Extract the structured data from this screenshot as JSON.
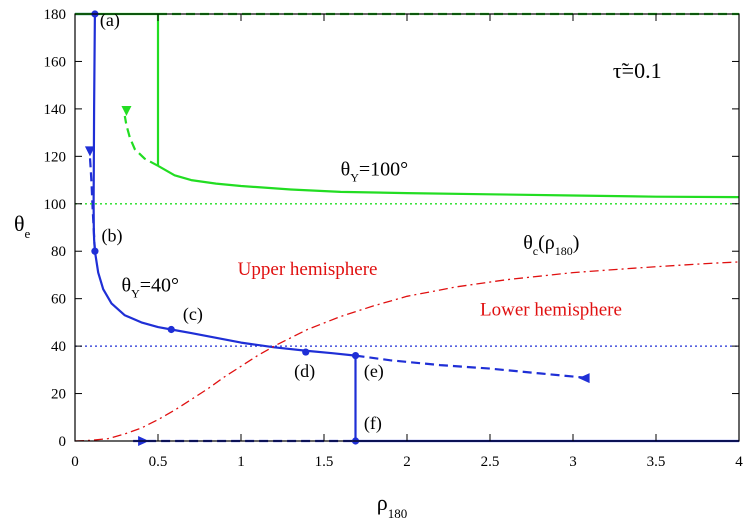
{
  "chart_data": {
    "type": "line",
    "xlabel": "ρ",
    "xlabel_sub": "180",
    "ylabel": "θ",
    "ylabel_sub": "e",
    "xlim": [
      0,
      4
    ],
    "ylim": [
      0,
      180
    ],
    "xticks": [
      0,
      0.5,
      1,
      1.5,
      2,
      2.5,
      3,
      3.5,
      4
    ],
    "xtick_labels": [
      "0",
      "0.5",
      "1",
      "1.5",
      "2",
      "2.5",
      "3",
      "3.5",
      "4"
    ],
    "yticks": [
      0,
      20,
      40,
      60,
      80,
      100,
      120,
      140,
      160,
      180
    ],
    "ytick_labels": [
      "0",
      "20",
      "40",
      "60",
      "80",
      "100",
      "120",
      "140",
      "160",
      "180"
    ],
    "colors": {
      "blue": "#1f2fd6",
      "green": "#22dd22",
      "red": "#e01010"
    },
    "series": [
      {
        "color": "blue",
        "style": "solid",
        "width": 2.2,
        "x": [
          0,
          0.12
        ],
        "y": [
          180,
          180
        ]
      },
      {
        "color": "blue",
        "style": "solid",
        "width": 2.2,
        "x": [
          0.12,
          0.115,
          0.113,
          0.112,
          0.113,
          0.115,
          0.12
        ],
        "y": [
          180,
          140,
          115,
          100,
          90,
          85,
          80
        ]
      },
      {
        "color": "blue",
        "style": "solid",
        "width": 2.2,
        "x": [
          0.12,
          0.14,
          0.17,
          0.22,
          0.3,
          0.4,
          0.5,
          0.58,
          0.7,
          0.85,
          1.0,
          1.2,
          1.4,
          1.55,
          1.69
        ],
        "y": [
          80,
          71,
          64,
          58,
          53,
          50,
          48,
          47,
          45.5,
          43.5,
          41.5,
          39.5,
          38,
          37,
          36
        ]
      },
      {
        "color": "blue",
        "style": "dashed",
        "width": 2.2,
        "x": [
          0.12,
          0.112,
          0.105,
          0.1,
          0.095,
          0.09
        ],
        "y": [
          80,
          90,
          100,
          108,
          114,
          120
        ]
      },
      {
        "color": "blue",
        "style": "dashed",
        "width": 2.2,
        "x": [
          1.69,
          1.9,
          2.2,
          2.5,
          2.8,
          3.1
        ],
        "y": [
          36,
          34,
          32,
          30.5,
          28.5,
          26.5
        ]
      },
      {
        "color": "blue",
        "style": "solid",
        "width": 2.2,
        "x": [
          1.69,
          1.69
        ],
        "y": [
          36,
          0
        ]
      },
      {
        "color": "blue",
        "style": "solid",
        "width": 2.2,
        "x": [
          1.69,
          4
        ],
        "y": [
          0,
          0
        ]
      },
      {
        "color": "blue",
        "style": "dashed",
        "width": 2.2,
        "x": [
          0.35,
          1.69
        ],
        "y": [
          0,
          0
        ]
      },
      {
        "color": "blue",
        "style": "dotted",
        "width": 1.3,
        "x": [
          0,
          4
        ],
        "y": [
          40,
          40
        ]
      },
      {
        "color": "green",
        "style": "solid",
        "width": 2.2,
        "x": [
          0,
          0.5
        ],
        "y": [
          180,
          180
        ]
      },
      {
        "color": "green",
        "style": "dashed",
        "width": 2.2,
        "x": [
          0.5,
          4
        ],
        "y": [
          180,
          180
        ]
      },
      {
        "color": "green",
        "style": "solid",
        "width": 2.2,
        "x": [
          0.5,
          0.5
        ],
        "y": [
          180,
          116
        ]
      },
      {
        "color": "green",
        "style": "solid",
        "width": 2.2,
        "x": [
          0.5,
          0.6,
          0.7,
          0.85,
          1.0,
          1.3,
          1.6,
          2.0,
          2.5,
          3.0,
          3.5,
          4.0
        ],
        "y": [
          116,
          112,
          110,
          108.5,
          107.5,
          106,
          105,
          104.5,
          104,
          103.5,
          103,
          102.8
        ]
      },
      {
        "color": "green",
        "style": "dashed",
        "width": 2.2,
        "x": [
          0.5,
          0.42,
          0.36,
          0.33,
          0.31,
          0.3
        ],
        "y": [
          116,
          119,
          123,
          128,
          133,
          137
        ]
      },
      {
        "color": "green",
        "style": "dotted",
        "width": 1.3,
        "x": [
          0,
          4
        ],
        "y": [
          100,
          100
        ]
      },
      {
        "color": "red",
        "style": "dashdot",
        "width": 1.3,
        "x": [
          0,
          0.1,
          0.2,
          0.3,
          0.4,
          0.5,
          0.6,
          0.7,
          0.8,
          0.9,
          1.0,
          1.1,
          1.2,
          1.4,
          1.6,
          1.8,
          2.0,
          2.3,
          2.6,
          3.0,
          3.4,
          3.8,
          4.0
        ],
        "y": [
          0,
          0.3,
          1,
          3,
          5.5,
          9,
          13,
          17.5,
          22,
          27,
          31.5,
          36,
          40,
          47,
          52.5,
          57,
          61,
          65,
          68,
          71,
          73,
          74.8,
          75.5
        ]
      }
    ],
    "points": [
      {
        "x": 0.12,
        "y": 180,
        "color": "blue"
      },
      {
        "x": 0.12,
        "y": 80,
        "color": "blue"
      },
      {
        "x": 0.58,
        "y": 47,
        "color": "blue"
      },
      {
        "x": 1.39,
        "y": 37.5,
        "color": "blue"
      },
      {
        "x": 1.69,
        "y": 36,
        "color": "blue"
      },
      {
        "x": 1.69,
        "y": 0,
        "color": "blue"
      }
    ],
    "arrowheads": [
      {
        "x": 0.09,
        "y": 120,
        "dir": "down",
        "color": "blue"
      },
      {
        "x": 0.31,
        "y": 137,
        "dir": "down",
        "color": "green"
      },
      {
        "x": 3.1,
        "y": 26.5,
        "dir": "left",
        "color": "blue"
      },
      {
        "x": 0.38,
        "y": 0,
        "dir": "right",
        "color": "blue"
      }
    ],
    "annotations": [
      {
        "text": "(a)",
        "x": 0.15,
        "y": 175,
        "color": "black"
      },
      {
        "text": "(b)",
        "x": 0.16,
        "y": 84,
        "color": "black"
      },
      {
        "text": "(c)",
        "x": 0.65,
        "y": 51,
        "color": "black"
      },
      {
        "text": "(d)",
        "x": 1.32,
        "y": 27,
        "color": "black"
      },
      {
        "text": "(e)",
        "x": 1.74,
        "y": 27,
        "color": "black"
      },
      {
        "text": "(f)",
        "x": 1.74,
        "y": 5,
        "color": "black"
      },
      {
        "text": "θ",
        "sub": "Y",
        "rest": "=40°",
        "x": 0.28,
        "y": 63,
        "color": "black"
      },
      {
        "text": "θ",
        "sub": "Y",
        "rest": "=100°",
        "x": 1.6,
        "y": 112,
        "color": "black"
      },
      {
        "text": "θ",
        "sub": "c",
        "rest": "(ρ",
        "sub2": "180",
        "rest2": ")",
        "x": 2.7,
        "y": 81,
        "color": "black"
      },
      {
        "text": "Upper hemisphere",
        "x": 0.98,
        "y": 70,
        "color": "red"
      },
      {
        "text": "Lower hemisphere",
        "x": 2.44,
        "y": 53,
        "color": "red"
      },
      {
        "text": "τ̃=0.1",
        "x": 3.24,
        "y": 153,
        "color": "black"
      }
    ]
  }
}
